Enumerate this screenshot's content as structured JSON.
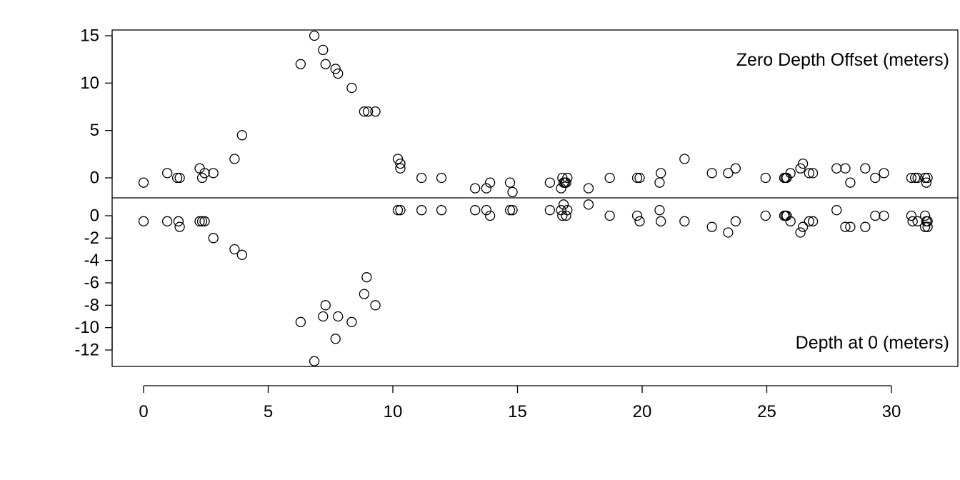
{
  "chart_data": [
    {
      "type": "scatter",
      "panel": "top",
      "title": "",
      "annotation": "Zero Depth Offset (meters)",
      "annotation_position": "top-right",
      "xlabel": "",
      "ylabel": "",
      "xlim": [
        -1.3,
        31.8
      ],
      "ylim": [
        -2.3,
        15.5
      ],
      "xticks": [
        0,
        5,
        10,
        15,
        20,
        25,
        30
      ],
      "yticks": [
        0,
        5,
        10,
        15
      ],
      "grid": false,
      "points": [
        {
          "x": 0.0,
          "y": -0.5
        },
        {
          "x": 0.95,
          "y": 0.5
        },
        {
          "x": 1.35,
          "y": 0.0
        },
        {
          "x": 1.45,
          "y": 0.0
        },
        {
          "x": 2.25,
          "y": 1.0
        },
        {
          "x": 2.35,
          "y": 0.0
        },
        {
          "x": 2.45,
          "y": 0.5
        },
        {
          "x": 2.8,
          "y": 0.5
        },
        {
          "x": 3.65,
          "y": 2.0
        },
        {
          "x": 3.95,
          "y": 4.5
        },
        {
          "x": 6.3,
          "y": 12.0
        },
        {
          "x": 6.85,
          "y": 15.0
        },
        {
          "x": 7.2,
          "y": 13.5
        },
        {
          "x": 7.3,
          "y": 12.0
        },
        {
          "x": 7.7,
          "y": 11.5
        },
        {
          "x": 7.8,
          "y": 11.0
        },
        {
          "x": 8.35,
          "y": 9.5
        },
        {
          "x": 8.85,
          "y": 7.0
        },
        {
          "x": 9.0,
          "y": 7.0
        },
        {
          "x": 9.3,
          "y": 7.0
        },
        {
          "x": 10.2,
          "y": 2.0
        },
        {
          "x": 10.3,
          "y": 1.5
        },
        {
          "x": 10.3,
          "y": 1.0
        },
        {
          "x": 11.15,
          "y": 0.0
        },
        {
          "x": 11.95,
          "y": 0.0
        },
        {
          "x": 13.3,
          "y": -1.1
        },
        {
          "x": 13.75,
          "y": -1.1
        },
        {
          "x": 13.9,
          "y": -0.5
        },
        {
          "x": 14.7,
          "y": -0.5
        },
        {
          "x": 14.8,
          "y": -1.5
        },
        {
          "x": 16.3,
          "y": -0.5
        },
        {
          "x": 16.75,
          "y": -1.1
        },
        {
          "x": 16.8,
          "y": 0.0
        },
        {
          "x": 16.85,
          "y": -0.5
        },
        {
          "x": 16.9,
          "y": -0.5
        },
        {
          "x": 16.95,
          "y": -0.5
        },
        {
          "x": 17.0,
          "y": 0.0
        },
        {
          "x": 17.85,
          "y": -1.1
        },
        {
          "x": 18.7,
          "y": 0.0
        },
        {
          "x": 19.8,
          "y": 0.0
        },
        {
          "x": 19.9,
          "y": 0.0
        },
        {
          "x": 20.7,
          "y": -0.5
        },
        {
          "x": 20.75,
          "y": 0.5
        },
        {
          "x": 21.7,
          "y": 2.0
        },
        {
          "x": 22.8,
          "y": 0.5
        },
        {
          "x": 23.45,
          "y": 0.5
        },
        {
          "x": 23.75,
          "y": 1.0
        },
        {
          "x": 24.95,
          "y": 0.0
        },
        {
          "x": 25.7,
          "y": 0.0
        },
        {
          "x": 25.75,
          "y": 0.0
        },
        {
          "x": 25.8,
          "y": 0.0
        },
        {
          "x": 25.95,
          "y": 0.5
        },
        {
          "x": 26.35,
          "y": 1.0
        },
        {
          "x": 26.45,
          "y": 1.5
        },
        {
          "x": 26.7,
          "y": 0.5
        },
        {
          "x": 26.85,
          "y": 0.5
        },
        {
          "x": 27.8,
          "y": 1.0
        },
        {
          "x": 28.15,
          "y": 1.0
        },
        {
          "x": 28.35,
          "y": -0.5
        },
        {
          "x": 28.95,
          "y": 1.0
        },
        {
          "x": 29.35,
          "y": 0.0
        },
        {
          "x": 29.7,
          "y": 0.5
        },
        {
          "x": 30.8,
          "y": 0.0
        },
        {
          "x": 30.95,
          "y": 0.0
        },
        {
          "x": 31.05,
          "y": 0.0
        },
        {
          "x": 31.35,
          "y": 0.0
        },
        {
          "x": 31.45,
          "y": 0.0
        },
        {
          "x": 31.4,
          "y": -0.5
        }
      ]
    },
    {
      "type": "scatter",
      "panel": "bottom",
      "title": "",
      "annotation": "Depth at 0 (meters)",
      "annotation_position": "bottom-right",
      "xlabel": "",
      "ylabel": "",
      "xlim": [
        -1.3,
        31.8
      ],
      "ylim": [
        -13.5,
        1.5
      ],
      "xticks": [
        0,
        5,
        10,
        15,
        20,
        25,
        30
      ],
      "yticks": [
        0,
        -2,
        -4,
        -6,
        -8,
        -10,
        -12
      ],
      "grid": false,
      "points": [
        {
          "x": 0.0,
          "y": -0.5
        },
        {
          "x": 0.95,
          "y": -0.5
        },
        {
          "x": 1.4,
          "y": -0.5
        },
        {
          "x": 1.45,
          "y": -1.0
        },
        {
          "x": 2.25,
          "y": -0.5
        },
        {
          "x": 2.35,
          "y": -0.5
        },
        {
          "x": 2.45,
          "y": -0.5
        },
        {
          "x": 2.8,
          "y": -2.0
        },
        {
          "x": 3.65,
          "y": -3.0
        },
        {
          "x": 3.95,
          "y": -3.5
        },
        {
          "x": 6.3,
          "y": -9.5
        },
        {
          "x": 6.85,
          "y": -13.0
        },
        {
          "x": 7.2,
          "y": -9.0
        },
        {
          "x": 7.3,
          "y": -8.0
        },
        {
          "x": 7.7,
          "y": -11.0
        },
        {
          "x": 7.8,
          "y": -9.0
        },
        {
          "x": 8.35,
          "y": -9.5
        },
        {
          "x": 8.85,
          "y": -7.0
        },
        {
          "x": 8.95,
          "y": -5.5
        },
        {
          "x": 9.3,
          "y": -8.0
        },
        {
          "x": 10.2,
          "y": 0.5
        },
        {
          "x": 10.3,
          "y": 0.5
        },
        {
          "x": 11.15,
          "y": 0.5
        },
        {
          "x": 11.95,
          "y": 0.5
        },
        {
          "x": 13.3,
          "y": 0.5
        },
        {
          "x": 13.75,
          "y": 0.5
        },
        {
          "x": 13.9,
          "y": 0.0
        },
        {
          "x": 14.7,
          "y": 0.5
        },
        {
          "x": 14.8,
          "y": 0.5
        },
        {
          "x": 16.3,
          "y": 0.5
        },
        {
          "x": 16.75,
          "y": 0.5
        },
        {
          "x": 16.8,
          "y": 0.0
        },
        {
          "x": 16.85,
          "y": 1.0
        },
        {
          "x": 16.95,
          "y": 0.0
        },
        {
          "x": 17.0,
          "y": 0.5
        },
        {
          "x": 17.85,
          "y": 1.0
        },
        {
          "x": 18.7,
          "y": 0.0
        },
        {
          "x": 19.8,
          "y": 0.0
        },
        {
          "x": 19.9,
          "y": -0.5
        },
        {
          "x": 20.7,
          "y": 0.5
        },
        {
          "x": 20.75,
          "y": -0.5
        },
        {
          "x": 21.7,
          "y": -0.5
        },
        {
          "x": 22.8,
          "y": -1.0
        },
        {
          "x": 23.45,
          "y": -1.5
        },
        {
          "x": 23.75,
          "y": -0.5
        },
        {
          "x": 24.95,
          "y": 0.0
        },
        {
          "x": 25.7,
          "y": 0.0
        },
        {
          "x": 25.75,
          "y": 0.0
        },
        {
          "x": 25.8,
          "y": 0.0
        },
        {
          "x": 25.95,
          "y": -0.5
        },
        {
          "x": 26.35,
          "y": -1.5
        },
        {
          "x": 26.45,
          "y": -1.0
        },
        {
          "x": 26.7,
          "y": -0.5
        },
        {
          "x": 26.85,
          "y": -0.5
        },
        {
          "x": 27.8,
          "y": 0.5
        },
        {
          "x": 28.15,
          "y": -1.0
        },
        {
          "x": 28.35,
          "y": -1.0
        },
        {
          "x": 28.95,
          "y": -1.0
        },
        {
          "x": 29.35,
          "y": 0.0
        },
        {
          "x": 29.7,
          "y": 0.0
        },
        {
          "x": 30.8,
          "y": 0.0
        },
        {
          "x": 30.85,
          "y": -0.5
        },
        {
          "x": 31.05,
          "y": -0.5
        },
        {
          "x": 31.35,
          "y": 0.0
        },
        {
          "x": 31.4,
          "y": -0.5
        },
        {
          "x": 31.45,
          "y": -1.0
        },
        {
          "x": 31.35,
          "y": -1.0
        },
        {
          "x": 31.45,
          "y": -0.5
        }
      ]
    }
  ]
}
